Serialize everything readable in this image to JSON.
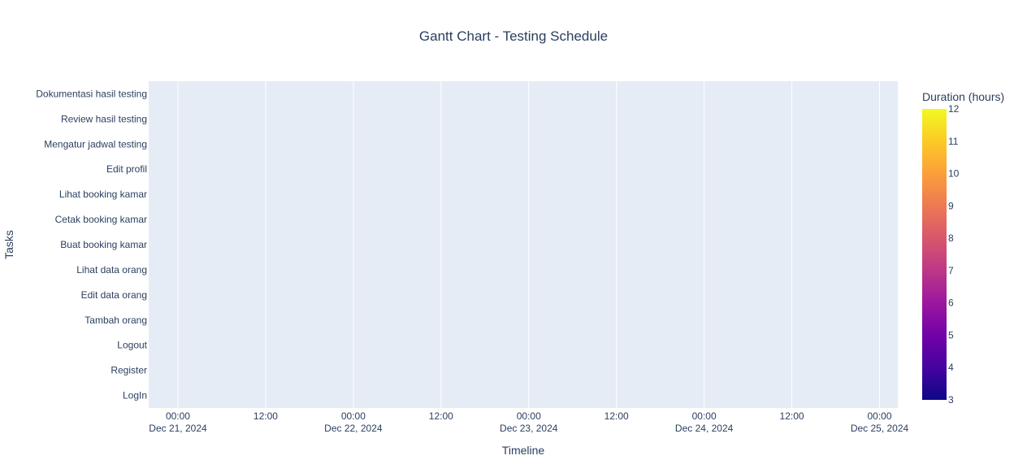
{
  "chart_data": {
    "type": "bar",
    "orientation": "horizontal",
    "title": "Gantt Chart - Testing Schedule",
    "xlabel": "Timeline",
    "ylabel": "Tasks",
    "categories": [
      "LogIn",
      "Register",
      "Logout",
      "Tambah orang",
      "Edit data orang",
      "Lihat data orang",
      "Buat booking kamar",
      "Cetak booking kamar",
      "Lihat booking kamar",
      "Edit profil",
      "Mengatur jadwal testing",
      "Review hasil testing",
      "Dokumentasi hasil testing"
    ],
    "x_ticks": [
      {
        "time": "00:00",
        "date": "Dec 21, 2024"
      },
      {
        "time": "12:00",
        "date": ""
      },
      {
        "time": "00:00",
        "date": "Dec 22, 2024"
      },
      {
        "time": "12:00",
        "date": ""
      },
      {
        "time": "00:00",
        "date": "Dec 23, 2024"
      },
      {
        "time": "12:00",
        "date": ""
      },
      {
        "time": "00:00",
        "date": "Dec 24, 2024"
      },
      {
        "time": "12:00",
        "date": ""
      },
      {
        "time": "00:00",
        "date": "Dec 25, 2024"
      }
    ],
    "xlim": [
      "2024-12-20 20:00",
      "2024-12-25 02:30"
    ],
    "bars": [],
    "colorbar": {
      "title": "Duration (hours)",
      "range": [
        3,
        12
      ],
      "ticks": [
        "3",
        "4",
        "5",
        "6",
        "7",
        "8",
        "9",
        "10",
        "11",
        "12"
      ],
      "colors": [
        "#0d0887",
        "#46039f",
        "#7201a8",
        "#9c179e",
        "#bd3786",
        "#d8576b",
        "#ed7953",
        "#fb9f3a",
        "#fdca26",
        "#f0f921"
      ]
    },
    "grid": true,
    "plot_bg": "#e5ecf6"
  }
}
